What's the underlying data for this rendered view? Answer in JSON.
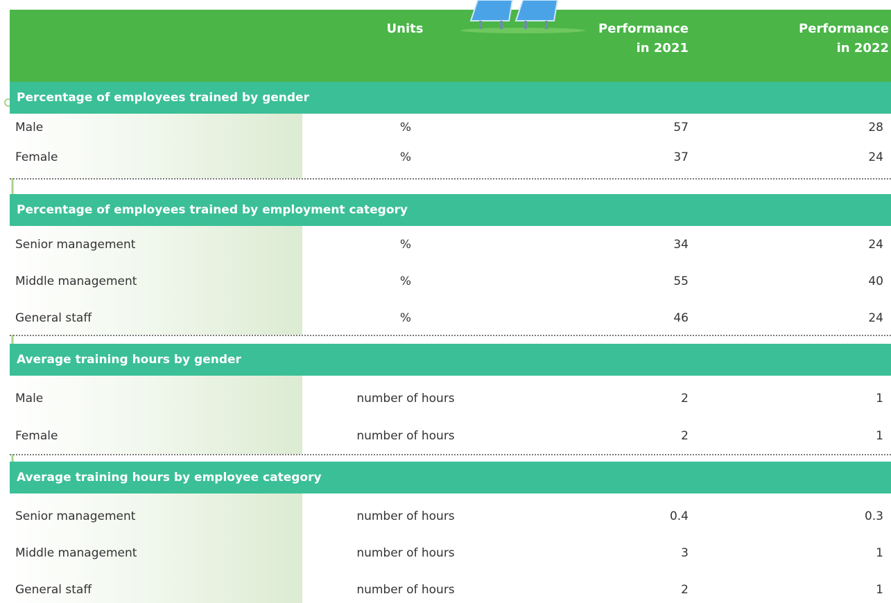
{
  "table": {
    "header": {
      "units": "Units",
      "perf2021": "Performance in 2021",
      "perf2022": "Performance in 2022"
    },
    "sections": [
      {
        "title": "Percentage of employees trained by gender",
        "rows": [
          [
            "Male",
            "%",
            57,
            28
          ],
          [
            "Female",
            "%",
            37,
            24
          ]
        ]
      },
      {
        "title": "Percentage of employees trained by employment category",
        "rows": [
          [
            "Senior management",
            "%",
            34,
            24
          ],
          [
            "Middle management",
            "%",
            55,
            40
          ],
          [
            "General staff",
            "%",
            46,
            24
          ]
        ]
      },
      {
        "title": "Average training hours by gender",
        "rows": [
          [
            "Male",
            "number of hours",
            2,
            1
          ],
          [
            "Female",
            "number of hours",
            2,
            1
          ]
        ]
      },
      {
        "title": "Average training hours by employee category",
        "rows": [
          [
            "Senior management",
            "number of hours",
            0.4,
            0.3
          ],
          [
            "Middle management",
            "number of hours",
            3,
            1
          ],
          [
            "General staff",
            "number of hours",
            2,
            1
          ]
        ]
      }
    ]
  }
}
